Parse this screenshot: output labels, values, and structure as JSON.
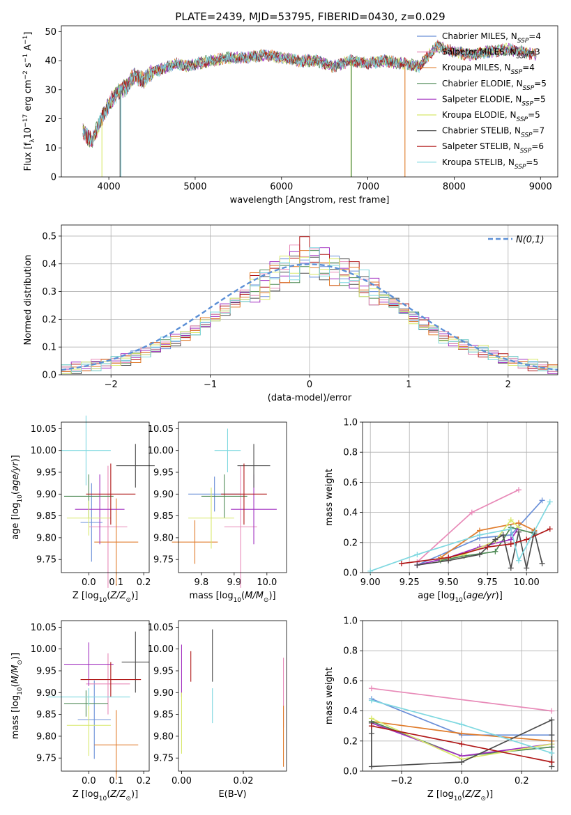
{
  "figure_title": "PLATE=2439, MJD=53795, FIBERID=0430, z=0.029",
  "series_names": [
    "Chabrier MILES, N_SSP=4",
    "Salpeter MILES, N_SSP=3",
    "Kroupa MILES, N_SSP=4",
    "Chabrier ELODIE, N_SSP=5",
    "Salpeter ELODIE, N_SSP=5",
    "Kroupa ELODIE, N_SSP=5",
    "Chabrier STELIB, N_SSP=7",
    "Salpeter STELIB, N_SSP=6",
    "Kroupa STELIB, N_SSP=5"
  ],
  "colors": [
    "#6a8fd8",
    "#e88ab8",
    "#e07b2a",
    "#4e8a55",
    "#a12fc0",
    "#d8e86a",
    "#4d4d4d",
    "#b01818",
    "#7fd8e0"
  ],
  "chart_data": [
    {
      "id": "spectrum",
      "type": "line",
      "xlabel": "wavelength [Angstrom, rest frame]",
      "ylabel": "Flux [f_λ 10^-17 erg cm^-2 s^-1 A^-1]",
      "xlim": [
        3450,
        9200
      ],
      "ylim": [
        0,
        52
      ],
      "xticks": [
        4000,
        5000,
        6000,
        7000,
        8000,
        9000
      ],
      "yticks": [
        0,
        10,
        20,
        30,
        40,
        50
      ],
      "grid": false,
      "legend_position": "upper right",
      "x": [
        3700,
        3800,
        3900,
        4000,
        4100,
        4200,
        4300,
        4400,
        4500,
        4600,
        4700,
        4800,
        4900,
        5000,
        5200,
        5400,
        5600,
        5800,
        6000,
        6200,
        6400,
        6600,
        6800,
        7000,
        7200,
        7400,
        7600,
        7800,
        8000,
        8200,
        8400,
        8600,
        8800,
        8950
      ],
      "flux": [
        16,
        12,
        19,
        25,
        29,
        31,
        35,
        33,
        36,
        37,
        38,
        39,
        38,
        39,
        40,
        41,
        41,
        42,
        41,
        40,
        40,
        38,
        40,
        39,
        40,
        39,
        38,
        45,
        43,
        42,
        43,
        44,
        43,
        42
      ]
    },
    {
      "id": "residuals",
      "type": "step",
      "xlabel": "(data-model)/error",
      "ylabel": "Normed distribution",
      "xlim": [
        -2.5,
        2.5
      ],
      "ylim": [
        0,
        0.54
      ],
      "xticks": [
        -2,
        -1,
        0,
        1,
        2
      ],
      "yticks": [
        0.0,
        0.1,
        0.2,
        0.3,
        0.4,
        0.5
      ],
      "grid": true,
      "legend": "N(0,1)",
      "bin_width": 0.1,
      "bins_start": -2.5,
      "series_values": [
        [
          0.02,
          0.02,
          0.03,
          0.03,
          0.04,
          0.05,
          0.05,
          0.07,
          0.08,
          0.09,
          0.11,
          0.12,
          0.14,
          0.16,
          0.18,
          0.21,
          0.23,
          0.26,
          0.28,
          0.3,
          0.33,
          0.35,
          0.37,
          0.38,
          0.39,
          0.4,
          0.39,
          0.38,
          0.37,
          0.35,
          0.33,
          0.3,
          0.28,
          0.26,
          0.23,
          0.21,
          0.18,
          0.16,
          0.14,
          0.12,
          0.11,
          0.09,
          0.08,
          0.07,
          0.05,
          0.05,
          0.04,
          0.03,
          0.03,
          0.02
        ],
        [
          0.02,
          0.03,
          0.03,
          0.04,
          0.04,
          0.05,
          0.06,
          0.07,
          0.08,
          0.1,
          0.11,
          0.13,
          0.15,
          0.16,
          0.19,
          0.21,
          0.24,
          0.27,
          0.29,
          0.31,
          0.34,
          0.36,
          0.38,
          0.42,
          0.45,
          0.43,
          0.41,
          0.37,
          0.36,
          0.36,
          0.32,
          0.3,
          0.27,
          0.25,
          0.24,
          0.21,
          0.19,
          0.17,
          0.14,
          0.12,
          0.1,
          0.09,
          0.08,
          0.07,
          0.06,
          0.05,
          0.04,
          0.03,
          0.02,
          0.02
        ],
        [
          0.02,
          0.02,
          0.03,
          0.03,
          0.04,
          0.05,
          0.06,
          0.06,
          0.08,
          0.1,
          0.12,
          0.13,
          0.14,
          0.16,
          0.19,
          0.21,
          0.23,
          0.26,
          0.28,
          0.32,
          0.32,
          0.37,
          0.38,
          0.39,
          0.4,
          0.41,
          0.38,
          0.37,
          0.38,
          0.34,
          0.33,
          0.31,
          0.27,
          0.27,
          0.22,
          0.2,
          0.17,
          0.16,
          0.13,
          0.12,
          0.11,
          0.09,
          0.09,
          0.07,
          0.05,
          0.05,
          0.04,
          0.04,
          0.03,
          0.02
        ]
      ]
    },
    {
      "id": "age-vs-Z",
      "type": "errorbar",
      "xlabel": "Z [log10(Z/Z_sun)]",
      "ylabel": "age [log10(age/yr)]",
      "xlim": [
        -0.1,
        0.22
      ],
      "ylim": [
        9.72,
        10.065
      ],
      "xticks": [
        0.0,
        0.1,
        0.2
      ],
      "yticks": [
        9.75,
        9.8,
        9.85,
        9.9,
        9.95,
        10.0,
        10.05
      ],
      "points": [
        {
          "s": 0,
          "x": 0.01,
          "xe": 0.04,
          "y": 9.835,
          "ye": 0.09
        },
        {
          "s": 1,
          "x": 0.07,
          "xe": 0.07,
          "y": 9.825,
          "ye": 0.14
        },
        {
          "s": 2,
          "x": 0.1,
          "xe": 0.08,
          "y": 9.79,
          "ye": 0.1
        },
        {
          "s": 3,
          "x": 0.0,
          "xe": 0.09,
          "y": 9.895,
          "ye": 0.05
        },
        {
          "s": 4,
          "x": 0.04,
          "xe": 0.09,
          "y": 9.865,
          "ye": 0.08
        },
        {
          "s": 5,
          "x": 0.0,
          "xe": 0.08,
          "y": 9.845,
          "ye": 0.04
        },
        {
          "s": 6,
          "x": 0.17,
          "xe": 0.07,
          "y": 9.965,
          "ye": 0.05
        },
        {
          "s": 7,
          "x": 0.08,
          "xe": 0.09,
          "y": 9.9,
          "ye": 0.07
        },
        {
          "s": 8,
          "x": -0.01,
          "xe": 0.09,
          "y": 10.0,
          "ye": 0.08
        }
      ]
    },
    {
      "id": "age-vs-mass",
      "type": "errorbar",
      "xlabel": "mass [log10(M/M_sun)]",
      "ylabel": "",
      "xlim": [
        9.73,
        10.06
      ],
      "ylim": [
        9.72,
        10.065
      ],
      "xticks": [
        9.8,
        9.9,
        10.0
      ],
      "yticks": [
        9.75,
        9.8,
        9.85,
        9.9,
        9.95,
        10.0,
        10.05
      ],
      "points": [
        {
          "s": 0,
          "x": 9.84,
          "xe": 0.08,
          "y": 9.9,
          "ye": 0.04
        },
        {
          "s": 1,
          "x": 9.92,
          "xe": 0.05,
          "y": 9.825,
          "ye": 0.14
        },
        {
          "s": 2,
          "x": 9.78,
          "xe": 0.07,
          "y": 9.79,
          "ye": 0.05
        },
        {
          "s": 3,
          "x": 9.87,
          "xe": 0.07,
          "y": 9.895,
          "ye": 0.05
        },
        {
          "s": 4,
          "x": 9.96,
          "xe": 0.07,
          "y": 9.865,
          "ye": 0.08
        },
        {
          "s": 5,
          "x": 9.83,
          "xe": 0.07,
          "y": 9.845,
          "ye": 0.07
        },
        {
          "s": 6,
          "x": 9.96,
          "xe": 0.05,
          "y": 9.965,
          "ye": 0.05
        },
        {
          "s": 7,
          "x": 9.93,
          "xe": 0.07,
          "y": 9.9,
          "ye": 0.07
        },
        {
          "s": 8,
          "x": 9.88,
          "xe": 0.04,
          "y": 10.0,
          "ye": 0.05
        }
      ]
    },
    {
      "id": "weight-vs-age",
      "type": "line",
      "xlabel": "age [log10(age/yr)]",
      "ylabel": "mass weight",
      "xlim": [
        8.95,
        10.2
      ],
      "ylim": [
        0,
        1.0
      ],
      "xticks": [
        9.0,
        9.25,
        9.5,
        9.75,
        10.0
      ],
      "yticks": [
        0.0,
        0.2,
        0.4,
        0.6,
        0.8,
        1.0
      ],
      "grid": true,
      "series": [
        {
          "s": 0,
          "x": [
            9.3,
            9.7,
            9.9,
            10.1
          ],
          "y": [
            0.05,
            0.23,
            0.25,
            0.48
          ]
        },
        {
          "s": 1,
          "x": [
            9.3,
            9.65,
            9.95
          ],
          "y": [
            0.07,
            0.4,
            0.55
          ]
        },
        {
          "s": 2,
          "x": [
            9.45,
            9.7,
            9.95,
            10.05
          ],
          "y": [
            0.1,
            0.28,
            0.33,
            0.28
          ]
        },
        {
          "s": 3,
          "x": [
            9.45,
            9.6,
            9.8,
            9.9,
            10.05
          ],
          "y": [
            0.08,
            0.11,
            0.14,
            0.3,
            0.26
          ]
        },
        {
          "s": 4,
          "x": [
            9.3,
            9.5,
            9.7,
            9.9,
            9.95
          ],
          "y": [
            0.05,
            0.1,
            0.17,
            0.22,
            0.3
          ]
        },
        {
          "s": 5,
          "x": [
            9.45,
            9.6,
            9.8,
            9.9,
            9.95
          ],
          "y": [
            0.09,
            0.12,
            0.21,
            0.35,
            0.3
          ]
        },
        {
          "s": 6,
          "x": [
            9.3,
            9.5,
            9.7,
            9.8,
            9.85,
            9.9,
            9.95,
            10.0,
            10.05,
            10.1
          ],
          "y": [
            0.05,
            0.08,
            0.12,
            0.22,
            0.25,
            0.03,
            0.27,
            0.03,
            0.27,
            0.06
          ]
        },
        {
          "s": 7,
          "x": [
            9.2,
            9.5,
            9.75,
            9.9,
            10.0,
            10.15
          ],
          "y": [
            0.06,
            0.1,
            0.17,
            0.19,
            0.22,
            0.29
          ]
        },
        {
          "s": 8,
          "x": [
            9.0,
            9.3,
            9.7,
            9.9,
            9.95,
            10.15
          ],
          "y": [
            0.01,
            0.12,
            0.25,
            0.29,
            0.08,
            0.47
          ]
        }
      ]
    },
    {
      "id": "mass-vs-Z",
      "type": "errorbar",
      "xlabel": "Z [log10(Z/Z_sun)]",
      "ylabel": "mass [log10(M/M_sun)]",
      "xlim": [
        -0.1,
        0.22
      ],
      "ylim": [
        9.72,
        10.065
      ],
      "xticks": [
        0.0,
        0.1,
        0.2
      ],
      "yticks": [
        9.75,
        9.8,
        9.85,
        9.9,
        9.95,
        10.0,
        10.05
      ],
      "points": [
        {
          "s": 0,
          "x": 0.02,
          "xe": 0.06,
          "y": 9.838,
          "ye": 0.09
        },
        {
          "s": 1,
          "x": 0.07,
          "xe": 0.08,
          "y": 9.92,
          "ye": 0.07
        },
        {
          "s": 2,
          "x": 0.1,
          "xe": 0.08,
          "y": 9.78,
          "ye": 0.08
        },
        {
          "s": 3,
          "x": -0.01,
          "xe": 0.08,
          "y": 9.875,
          "ye": 0.03
        },
        {
          "s": 4,
          "x": 0.0,
          "xe": 0.09,
          "y": 9.965,
          "ye": 0.05
        },
        {
          "s": 5,
          "x": 0.0,
          "xe": 0.08,
          "y": 9.825,
          "ye": 0.07
        },
        {
          "s": 6,
          "x": 0.17,
          "xe": 0.05,
          "y": 9.97,
          "ye": 0.07
        },
        {
          "s": 7,
          "x": 0.08,
          "xe": 0.11,
          "y": 9.93,
          "ye": 0.04
        },
        {
          "s": 8,
          "x": 0.0,
          "xe": 0.15,
          "y": 9.89,
          "ye": 0.02
        }
      ]
    },
    {
      "id": "mass-vs-EBV",
      "type": "errorbar",
      "xlabel": "E(B-V)",
      "ylabel": "",
      "xlim": [
        -0.001,
        0.034
      ],
      "ylim": [
        9.72,
        10.065
      ],
      "xticks": [
        0.0,
        0.02
      ],
      "yticks": [
        9.75,
        9.8,
        9.85,
        9.9,
        9.95,
        10.0,
        10.05
      ],
      "points": [
        {
          "s": 1,
          "x": 0.033,
          "xe": 0.0,
          "y": 9.9,
          "ye": 0.08
        },
        {
          "s": 2,
          "x": 0.033,
          "xe": 0.0,
          "y": 9.8,
          "ye": 0.07
        },
        {
          "s": 4,
          "x": 0.0,
          "xe": 0.0,
          "y": 9.95,
          "ye": 0.06
        },
        {
          "s": 5,
          "x": 0.0,
          "xe": 0.0,
          "y": 9.83,
          "ye": 0.07
        },
        {
          "s": 6,
          "x": 0.01,
          "xe": 0.0,
          "y": 9.985,
          "ye": 0.06
        },
        {
          "s": 7,
          "x": 0.003,
          "xe": 0.0,
          "y": 9.96,
          "ye": 0.035
        },
        {
          "s": 8,
          "x": 0.01,
          "xe": 0.0,
          "y": 9.87,
          "ye": 0.04
        }
      ]
    },
    {
      "id": "weight-vs-Z",
      "type": "line",
      "xlabel": "Z [log10(Z/Z_sun)]",
      "ylabel": "mass weight",
      "xlim": [
        -0.33,
        0.32
      ],
      "ylim": [
        0,
        1.0
      ],
      "xticks": [
        -0.2,
        0.0,
        0.2
      ],
      "yticks": [
        0.0,
        0.2,
        0.4,
        0.6,
        0.8,
        1.0
      ],
      "grid": true,
      "series": [
        {
          "s": 0,
          "x": [
            -0.3,
            0.0,
            0.3
          ],
          "y": [
            0.48,
            0.24,
            0.24
          ]
        },
        {
          "s": 1,
          "x": [
            -0.3,
            0.3
          ],
          "y": [
            0.55,
            0.4
          ]
        },
        {
          "s": 2,
          "x": [
            -0.3,
            0.0,
            0.3
          ],
          "y": [
            0.33,
            0.25,
            0.2
          ]
        },
        {
          "s": 3,
          "x": [
            -0.3,
            0.0,
            0.3
          ],
          "y": [
            0.33,
            0.1,
            0.16
          ]
        },
        {
          "s": 4,
          "x": [
            -0.3,
            0.0,
            0.3
          ],
          "y": [
            0.32,
            0.1,
            0.18
          ]
        },
        {
          "s": 5,
          "x": [
            -0.3,
            0.0,
            0.3
          ],
          "y": [
            0.35,
            0.08,
            0.18
          ]
        },
        {
          "s": 6,
          "x": [
            -0.3,
            -0.3,
            -0.3,
            0.0,
            0.3,
            0.3,
            0.3
          ],
          "y": [
            0.25,
            0.32,
            0.03,
            0.06,
            0.34,
            0.24,
            0.03
          ]
        },
        {
          "s": 7,
          "x": [
            -0.3,
            0.0,
            0.3
          ],
          "y": [
            0.3,
            0.18,
            0.06
          ]
        },
        {
          "s": 8,
          "x": [
            -0.3,
            0.0,
            0.3
          ],
          "y": [
            0.47,
            0.31,
            0.12
          ]
        }
      ]
    }
  ]
}
